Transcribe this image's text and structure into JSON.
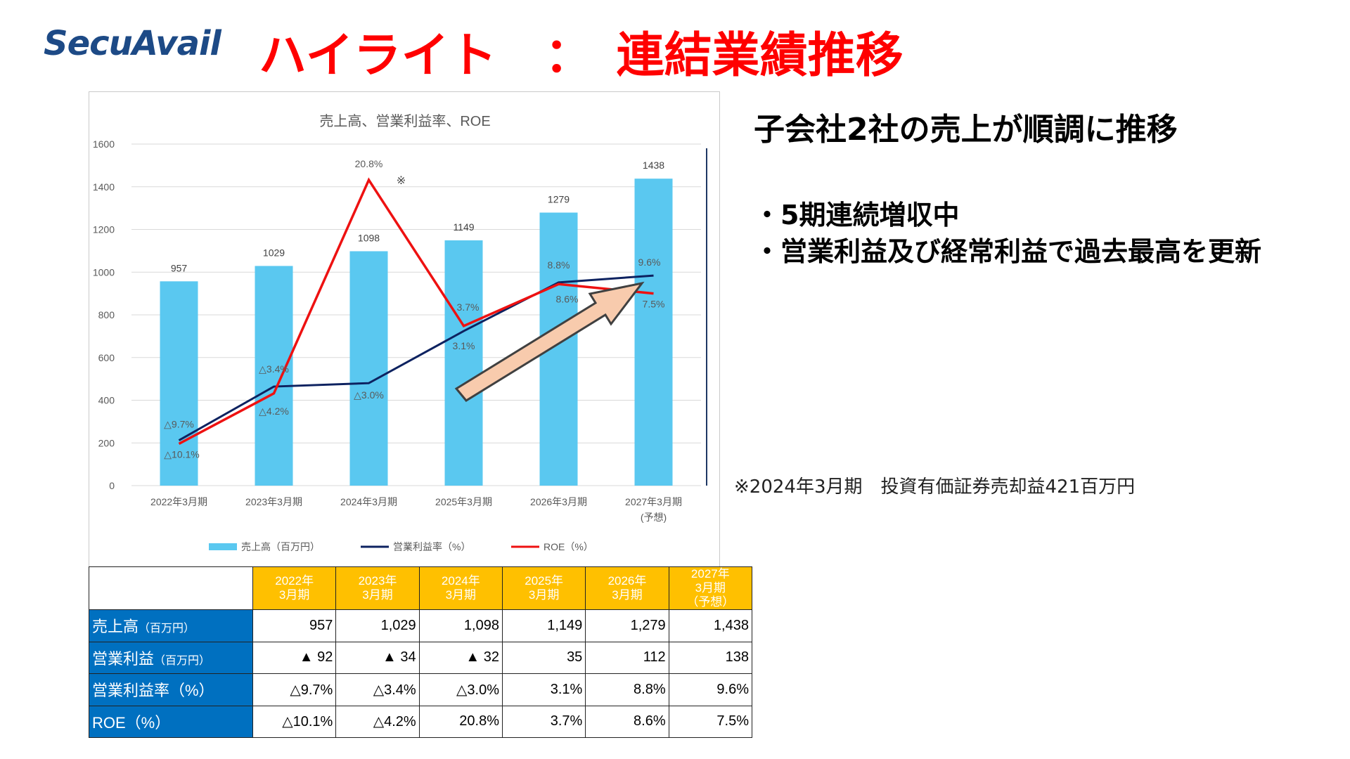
{
  "logo": "SecuAvail",
  "title": "ハイライト　：　連結業績推移",
  "chart_data": {
    "type": "bar",
    "title": "売上高、営業利益率、ROE",
    "categories": [
      "2022年3月期",
      "2023年3月期",
      "2024年3月期",
      "2025年3月期",
      "2026年3月期",
      "2027年3月期"
    ],
    "category_notes": [
      "",
      "",
      "",
      "",
      "",
      "(予想)"
    ],
    "ylim": [
      0,
      1600
    ],
    "yticks": [
      "0",
      "200",
      "400",
      "600",
      "800",
      "1000",
      "1200",
      "1400",
      "1600"
    ],
    "series": [
      {
        "name": "売上高（百万円）",
        "type": "bar",
        "color": "#5ac8f0",
        "values": [
          957,
          1029,
          1098,
          1149,
          1279,
          1438
        ],
        "labels": [
          "957",
          "1029",
          "1098",
          "1149",
          "1279",
          "1438"
        ]
      },
      {
        "name": "営業利益率（%）",
        "type": "line",
        "color": "#0d2260",
        "values": [
          -9.7,
          -3.4,
          -3.0,
          3.1,
          8.8,
          9.6
        ],
        "labels": [
          "△9.7%",
          "△3.4%",
          "△3.0%",
          "3.1%",
          "8.8%",
          "9.6%"
        ]
      },
      {
        "name": "ROE（%）",
        "type": "line",
        "color": "#ee1111",
        "values": [
          -10.1,
          -4.2,
          20.8,
          3.7,
          8.6,
          7.5
        ],
        "labels": [
          "△10.1%",
          "△4.2%",
          "20.8%",
          "3.7%",
          "8.6%",
          "7.5%"
        ]
      }
    ],
    "annotation": "※",
    "legend_position": "bottom",
    "grid": true
  },
  "heading": "子会社2社の売上が順調に推移",
  "bullets": [
    "・5期連続増収中",
    "・営業利益及び経常利益で過去最高を更新"
  ],
  "note": "※2024年3月期　投資有価証券売却益421百万円",
  "table": {
    "headers": [
      [
        "2022年",
        "3月期",
        ""
      ],
      [
        "2023年",
        "3月期",
        ""
      ],
      [
        "2024年",
        "3月期",
        ""
      ],
      [
        "2025年",
        "3月期",
        ""
      ],
      [
        "2026年",
        "3月期",
        ""
      ],
      [
        "2027年",
        "3月期",
        "（予想）"
      ]
    ],
    "rows": [
      {
        "label": "売上高",
        "sub": "（百万円）",
        "values": [
          "957",
          "1,029",
          "1,098",
          "1,149",
          "1,279",
          "1,438"
        ]
      },
      {
        "label": "営業利益",
        "sub": "（百万円）",
        "values": [
          "▲ 92",
          "▲ 34",
          "▲ 32",
          "35",
          "112",
          "138"
        ]
      },
      {
        "label": "営業利益率（%）",
        "sub": "",
        "values": [
          "△9.7%",
          "△3.4%",
          "△3.0%",
          "3.1%",
          "8.8%",
          "9.6%"
        ]
      },
      {
        "label": "ROE（%）",
        "sub": "",
        "values": [
          "△10.1%",
          "△4.2%",
          "20.8%",
          "3.7%",
          "8.6%",
          "7.5%"
        ]
      }
    ]
  }
}
